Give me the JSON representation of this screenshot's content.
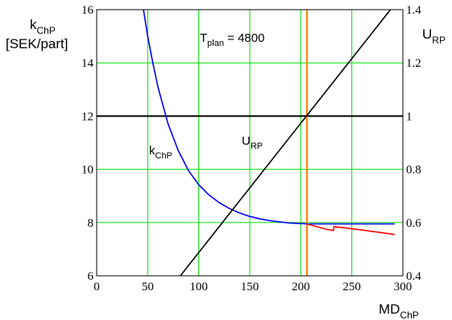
{
  "chart_data": {
    "type": "line",
    "x_axis": {
      "label_main": "MD",
      "label_sub": "ChP",
      "range": [
        0,
        300
      ],
      "ticks": [
        0,
        50,
        100,
        150,
        200,
        250,
        300
      ]
    },
    "y_left": {
      "label_main": "k",
      "label_sub": "ChP",
      "unit": "[SEK/part]",
      "range": [
        6,
        16
      ],
      "ticks": [
        6,
        8,
        10,
        12,
        14,
        16
      ]
    },
    "y_right": {
      "label_main": "U",
      "label_sub": "RP",
      "range": [
        0.4,
        1.4
      ],
      "ticks": [
        "0.4",
        "0.6",
        "0.8",
        "1",
        "1.2",
        "1.4"
      ]
    },
    "grid": true,
    "annotation": {
      "main": "T",
      "sub": "plan",
      "rest": " = 4800"
    },
    "curve_labels": {
      "k": {
        "main": "k",
        "sub": "ChP"
      },
      "u": {
        "main": "U",
        "sub": "RP"
      }
    },
    "colors": {
      "k_curve": "#0000ff",
      "u_line": "#000000",
      "marker": "#ff8000",
      "red_curve": "#ff0000",
      "grid": "#00e000"
    },
    "series": [
      {
        "axis": "left",
        "color": "#0000ff",
        "x": [
          45,
          50,
          55,
          60,
          65,
          70,
          75,
          80,
          90,
          100,
          110,
          120,
          130,
          140,
          150,
          160,
          170,
          180,
          190,
          200,
          206,
          250,
          292
        ],
        "y": [
          16.2,
          15.0,
          14.0,
          13.1,
          12.4,
          11.7,
          11.2,
          10.7,
          9.95,
          9.42,
          9.04,
          8.75,
          8.53,
          8.36,
          8.23,
          8.14,
          8.07,
          8.02,
          7.98,
          7.96,
          7.95,
          7.95,
          7.95
        ]
      },
      {
        "axis": "right",
        "color": "#000000",
        "x": [
          82,
          294
        ],
        "y": [
          0.4,
          1.43
        ]
      },
      {
        "axis": "left",
        "color": "#ff0000",
        "x": [
          206,
          225,
          232,
          232.5,
          260,
          292
        ],
        "y": [
          7.95,
          7.75,
          7.7,
          7.85,
          7.72,
          7.55
        ]
      }
    ],
    "hline_left": 12,
    "vline_x": 206
  }
}
